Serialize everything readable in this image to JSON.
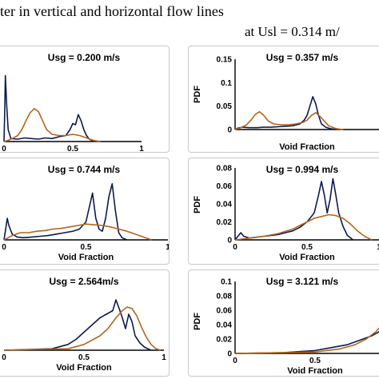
{
  "figure": {
    "title": "ter in vertical and horizontal flow lines",
    "subtitle": "at Usl = 0.314 m/"
  },
  "chart_data": [
    {
      "type": "line",
      "title": "Usg = 0.200 m/s",
      "xlabel": "Void Fraction",
      "ylabel": "",
      "xlim": [
        0,
        1
      ],
      "ylim": [
        0,
        0.12
      ],
      "x_ticks": [
        "0",
        "0.5",
        "1"
      ],
      "y_ticks": [],
      "grid": false,
      "series": [
        {
          "color": "#0c1a52",
          "points": [
            [
              0,
              0
            ],
            [
              0.005,
              0.05
            ],
            [
              0.01,
              0.11
            ],
            [
              0.02,
              0.06
            ],
            [
              0.03,
              0.02
            ],
            [
              0.05,
              0.005
            ],
            [
              0.1,
              0.004
            ],
            [
              0.15,
              0.006
            ],
            [
              0.2,
              0.005
            ],
            [
              0.25,
              0.004
            ],
            [
              0.3,
              0.006
            ],
            [
              0.35,
              0.005
            ],
            [
              0.4,
              0.008
            ],
            [
              0.45,
              0.01
            ],
            [
              0.48,
              0.02
            ],
            [
              0.5,
              0.03
            ],
            [
              0.52,
              0.028
            ],
            [
              0.54,
              0.045
            ],
            [
              0.56,
              0.035
            ],
            [
              0.58,
              0.02
            ],
            [
              0.6,
              0.01
            ],
            [
              0.62,
              0.004
            ],
            [
              0.65,
              0.001
            ],
            [
              0.7,
              0
            ]
          ]
        },
        {
          "color": "#b5651d",
          "points": [
            [
              0,
              0
            ],
            [
              0.03,
              0.002
            ],
            [
              0.06,
              0.005
            ],
            [
              0.1,
              0.01
            ],
            [
              0.13,
              0.02
            ],
            [
              0.16,
              0.035
            ],
            [
              0.19,
              0.048
            ],
            [
              0.22,
              0.055
            ],
            [
              0.25,
              0.05
            ],
            [
              0.28,
              0.035
            ],
            [
              0.31,
              0.02
            ],
            [
              0.35,
              0.012
            ],
            [
              0.4,
              0.01
            ],
            [
              0.45,
              0.01
            ],
            [
              0.5,
              0.012
            ],
            [
              0.55,
              0.01
            ],
            [
              0.6,
              0.006
            ],
            [
              0.65,
              0.002
            ],
            [
              0.7,
              0
            ]
          ]
        }
      ]
    },
    {
      "type": "line",
      "title": "Usg = 0.357 m/s",
      "xlabel": "Void Fraction",
      "ylabel": "PDF",
      "xlim": [
        0,
        1
      ],
      "ylim": [
        0,
        0.15
      ],
      "x_ticks": [],
      "y_ticks": [
        "0",
        "0.05",
        "0.1",
        "0.15"
      ],
      "grid": false,
      "series": [
        {
          "color": "#0c1a52",
          "points": [
            [
              0,
              0
            ],
            [
              0.02,
              0.003
            ],
            [
              0.05,
              0.005
            ],
            [
              0.1,
              0.004
            ],
            [
              0.15,
              0.004
            ],
            [
              0.2,
              0.005
            ],
            [
              0.25,
              0.005
            ],
            [
              0.3,
              0.006
            ],
            [
              0.35,
              0.007
            ],
            [
              0.4,
              0.008
            ],
            [
              0.45,
              0.012
            ],
            [
              0.48,
              0.02
            ],
            [
              0.5,
              0.03
            ],
            [
              0.52,
              0.05
            ],
            [
              0.54,
              0.07
            ],
            [
              0.56,
              0.055
            ],
            [
              0.58,
              0.03
            ],
            [
              0.6,
              0.012
            ],
            [
              0.63,
              0.005
            ],
            [
              0.66,
              0.002
            ],
            [
              0.7,
              0
            ]
          ]
        },
        {
          "color": "#b5651d",
          "points": [
            [
              0,
              0
            ],
            [
              0.04,
              0.004
            ],
            [
              0.08,
              0.01
            ],
            [
              0.11,
              0.02
            ],
            [
              0.14,
              0.032
            ],
            [
              0.17,
              0.038
            ],
            [
              0.2,
              0.03
            ],
            [
              0.23,
              0.018
            ],
            [
              0.27,
              0.012
            ],
            [
              0.32,
              0.01
            ],
            [
              0.37,
              0.01
            ],
            [
              0.42,
              0.012
            ],
            [
              0.47,
              0.015
            ],
            [
              0.5,
              0.02
            ],
            [
              0.53,
              0.03
            ],
            [
              0.56,
              0.036
            ],
            [
              0.59,
              0.028
            ],
            [
              0.62,
              0.018
            ],
            [
              0.65,
              0.008
            ],
            [
              0.7,
              0.002
            ],
            [
              0.75,
              0
            ]
          ]
        }
      ]
    },
    {
      "type": "line",
      "title": "Usg = 0.744 m/s",
      "xlabel": "Void Fraction",
      "ylabel": "",
      "xlim": [
        0,
        1
      ],
      "ylim": [
        0,
        0.1
      ],
      "x_ticks": [
        "0",
        "0.5",
        "1"
      ],
      "y_ticks": [],
      "grid": false,
      "series": [
        {
          "color": "#0c1a52",
          "points": [
            [
              0,
              0
            ],
            [
              0.01,
              0.015
            ],
            [
              0.02,
              0.03
            ],
            [
              0.03,
              0.02
            ],
            [
              0.05,
              0.008
            ],
            [
              0.08,
              0.004
            ],
            [
              0.12,
              0.003
            ],
            [
              0.17,
              0.004
            ],
            [
              0.22,
              0.005
            ],
            [
              0.27,
              0.006
            ],
            [
              0.32,
              0.008
            ],
            [
              0.37,
              0.01
            ],
            [
              0.42,
              0.012
            ],
            [
              0.46,
              0.015
            ],
            [
              0.5,
              0.025
            ],
            [
              0.52,
              0.045
            ],
            [
              0.54,
              0.065
            ],
            [
              0.56,
              0.03
            ],
            [
              0.58,
              0.015
            ],
            [
              0.6,
              0.012
            ],
            [
              0.62,
              0.03
            ],
            [
              0.64,
              0.06
            ],
            [
              0.66,
              0.078
            ],
            [
              0.68,
              0.04
            ],
            [
              0.7,
              0.01
            ],
            [
              0.72,
              0.003
            ],
            [
              0.75,
              0
            ]
          ]
        },
        {
          "color": "#b5651d",
          "points": [
            [
              0,
              0
            ],
            [
              0.05,
              0.006
            ],
            [
              0.1,
              0.01
            ],
            [
              0.15,
              0.01
            ],
            [
              0.2,
              0.012
            ],
            [
              0.25,
              0.013
            ],
            [
              0.3,
              0.015
            ],
            [
              0.35,
              0.016
            ],
            [
              0.4,
              0.018
            ],
            [
              0.45,
              0.02
            ],
            [
              0.5,
              0.022
            ],
            [
              0.55,
              0.021
            ],
            [
              0.6,
              0.02
            ],
            [
              0.65,
              0.018
            ],
            [
              0.7,
              0.015
            ],
            [
              0.75,
              0.012
            ],
            [
              0.8,
              0.008
            ],
            [
              0.85,
              0.004
            ],
            [
              0.9,
              0
            ]
          ]
        }
      ]
    },
    {
      "type": "line",
      "title": "Usg = 0.994 m/s",
      "xlabel": "Void Fraction",
      "ylabel": "PDF",
      "xlim": [
        0,
        1
      ],
      "ylim": [
        0,
        0.08
      ],
      "x_ticks": [
        "0",
        "0.5",
        "1"
      ],
      "y_ticks": [
        "0",
        "0.02",
        "0.04",
        "0.06",
        "0.08"
      ],
      "grid": false,
      "series": [
        {
          "color": "#0c1a52",
          "points": [
            [
              0,
              0
            ],
            [
              0.02,
              0.004
            ],
            [
              0.04,
              0.008
            ],
            [
              0.06,
              0.004
            ],
            [
              0.1,
              0.002
            ],
            [
              0.15,
              0.003
            ],
            [
              0.2,
              0.004
            ],
            [
              0.25,
              0.005
            ],
            [
              0.3,
              0.006
            ],
            [
              0.35,
              0.008
            ],
            [
              0.4,
              0.01
            ],
            [
              0.45,
              0.014
            ],
            [
              0.5,
              0.02
            ],
            [
              0.55,
              0.03
            ],
            [
              0.58,
              0.05
            ],
            [
              0.6,
              0.065
            ],
            [
              0.62,
              0.05
            ],
            [
              0.64,
              0.03
            ],
            [
              0.66,
              0.045
            ],
            [
              0.68,
              0.068
            ],
            [
              0.7,
              0.05
            ],
            [
              0.72,
              0.03
            ],
            [
              0.75,
              0.015
            ],
            [
              0.78,
              0.005
            ],
            [
              0.82,
              0
            ]
          ]
        },
        {
          "color": "#b5651d",
          "points": [
            [
              0,
              0
            ],
            [
              0.1,
              0.002
            ],
            [
              0.2,
              0.004
            ],
            [
              0.3,
              0.007
            ],
            [
              0.4,
              0.012
            ],
            [
              0.45,
              0.016
            ],
            [
              0.5,
              0.02
            ],
            [
              0.55,
              0.024
            ],
            [
              0.6,
              0.026
            ],
            [
              0.65,
              0.028
            ],
            [
              0.7,
              0.027
            ],
            [
              0.75,
              0.024
            ],
            [
              0.8,
              0.018
            ],
            [
              0.85,
              0.01
            ],
            [
              0.9,
              0.004
            ],
            [
              0.95,
              0
            ]
          ]
        }
      ]
    },
    {
      "type": "line",
      "title": "Usg = 2.564m/s",
      "xlabel": "Void Fraction",
      "ylabel": "",
      "xlim": [
        0,
        1
      ],
      "ylim": [
        0,
        0.1
      ],
      "x_ticks": [
        "0",
        "0.5",
        "1"
      ],
      "y_ticks": [],
      "grid": false,
      "series": [
        {
          "color": "#0c1a52",
          "points": [
            [
              0,
              0
            ],
            [
              0.3,
              0.002
            ],
            [
              0.4,
              0.008
            ],
            [
              0.45,
              0.015
            ],
            [
              0.5,
              0.025
            ],
            [
              0.55,
              0.035
            ],
            [
              0.6,
              0.045
            ],
            [
              0.64,
              0.05
            ],
            [
              0.68,
              0.055
            ],
            [
              0.7,
              0.07
            ],
            [
              0.72,
              0.058
            ],
            [
              0.74,
              0.045
            ],
            [
              0.76,
              0.03
            ],
            [
              0.78,
              0.05
            ],
            [
              0.8,
              0.04
            ],
            [
              0.82,
              0.02
            ],
            [
              0.85,
              0.01
            ],
            [
              0.88,
              0.004
            ],
            [
              0.92,
              0
            ]
          ]
        },
        {
          "color": "#b5651d",
          "points": [
            [
              0,
              0
            ],
            [
              0.4,
              0.002
            ],
            [
              0.5,
              0.008
            ],
            [
              0.6,
              0.02
            ],
            [
              0.65,
              0.03
            ],
            [
              0.7,
              0.045
            ],
            [
              0.74,
              0.055
            ],
            [
              0.77,
              0.06
            ],
            [
              0.8,
              0.058
            ],
            [
              0.83,
              0.048
            ],
            [
              0.86,
              0.032
            ],
            [
              0.89,
              0.018
            ],
            [
              0.92,
              0.008
            ],
            [
              0.95,
              0.002
            ],
            [
              0.98,
              0
            ]
          ]
        }
      ]
    },
    {
      "type": "line",
      "title": "Usg = 3.121 m/s",
      "xlabel": "Void Fraction",
      "ylabel": "PDF",
      "xlim": [
        0,
        1
      ],
      "ylim": [
        0,
        0.1
      ],
      "x_ticks": [
        "0",
        "0.5"
      ],
      "y_ticks": [
        "0",
        "0.02",
        "0.04",
        "0.06",
        "0.08",
        "0.1"
      ],
      "grid": false,
      "series": [
        {
          "color": "#0c1a52",
          "points": [
            [
              0,
              0
            ],
            [
              0.3,
              0.001
            ],
            [
              0.5,
              0.004
            ],
            [
              0.6,
              0.008
            ],
            [
              0.7,
              0.012
            ],
            [
              0.75,
              0.016
            ],
            [
              0.8,
              0.02
            ],
            [
              0.85,
              0.024
            ],
            [
              0.9,
              0.03
            ],
            [
              0.95,
              0.035
            ],
            [
              1,
              0.04
            ]
          ]
        },
        {
          "color": "#b5651d",
          "points": [
            [
              0,
              0
            ],
            [
              0.5,
              0.002
            ],
            [
              0.65,
              0.006
            ],
            [
              0.75,
              0.012
            ],
            [
              0.82,
              0.02
            ],
            [
              0.88,
              0.03
            ],
            [
              0.92,
              0.04
            ],
            [
              0.95,
              0.05
            ],
            [
              0.98,
              0.058
            ],
            [
              1,
              0.06
            ]
          ]
        }
      ]
    }
  ]
}
